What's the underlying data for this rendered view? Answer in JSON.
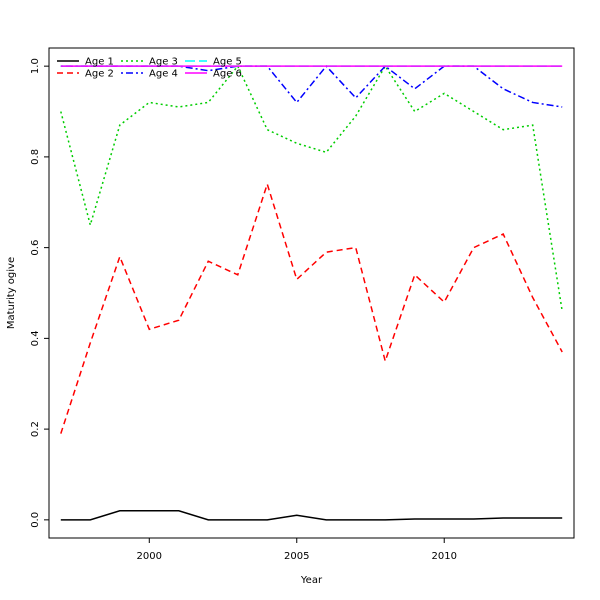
{
  "chart_data": {
    "type": "line",
    "title": "",
    "xlabel": "Year",
    "ylabel": "Maturity ogive",
    "xlim": [
      1996.6,
      2014.4
    ],
    "ylim": [
      -0.04,
      1.04
    ],
    "x_ticks": [
      2000,
      2005,
      2010
    ],
    "y_ticks": [
      0.0,
      0.2,
      0.4,
      0.6,
      0.8,
      1.0
    ],
    "x_tick_labels": [
      "2000",
      "2005",
      "2010"
    ],
    "y_tick_labels": [
      "0.0",
      "0.2",
      "0.4",
      "0.6",
      "0.8",
      "1.0"
    ],
    "grid": false,
    "legend_position": "top-left",
    "x": [
      1997,
      1998,
      1999,
      2000,
      2001,
      2002,
      2003,
      2004,
      2005,
      2006,
      2007,
      2008,
      2009,
      2010,
      2011,
      2012,
      2013,
      2014
    ],
    "series": [
      {
        "name": "Age 1",
        "color": "#000000",
        "dash": "solid",
        "values": [
          0.0,
          0.0,
          0.02,
          0.02,
          0.02,
          0.0,
          0.0,
          0.0,
          0.01,
          0.0,
          0.0,
          0.0,
          0.002,
          0.002,
          0.002,
          0.004,
          0.004,
          0.004
        ]
      },
      {
        "name": "Age 2",
        "color": "#ff0000",
        "dash": "dashed",
        "values": [
          0.19,
          0.39,
          0.58,
          0.42,
          0.44,
          0.57,
          0.54,
          0.74,
          0.53,
          0.59,
          0.6,
          0.35,
          0.54,
          0.48,
          0.6,
          0.63,
          0.49,
          0.37
        ]
      },
      {
        "name": "Age 3",
        "color": "#00cd00",
        "dash": "dotted",
        "values": [
          0.9,
          0.65,
          0.87,
          0.92,
          0.91,
          0.92,
          1.0,
          0.86,
          0.83,
          0.81,
          0.89,
          1.0,
          0.9,
          0.94,
          0.9,
          0.86,
          0.87,
          0.46
        ]
      },
      {
        "name": "Age 4",
        "color": "#0000ff",
        "dash": "dotdash",
        "values": [
          1.0,
          1.0,
          1.0,
          1.0,
          1.0,
          0.99,
          1.0,
          1.0,
          0.92,
          1.0,
          0.93,
          1.0,
          0.95,
          1.0,
          1.0,
          0.95,
          0.92,
          0.91
        ]
      },
      {
        "name": "Age 5",
        "color": "#00ffff",
        "dash": "longdash",
        "values": [
          1.0,
          1.0,
          1.0,
          1.0,
          1.0,
          1.0,
          1.0,
          1.0,
          1.0,
          1.0,
          1.0,
          1.0,
          1.0,
          1.0,
          1.0,
          1.0,
          1.0,
          1.0
        ]
      },
      {
        "name": "Age 6",
        "color": "#ff00ff",
        "dash": "solid",
        "values": [
          1.0,
          1.0,
          1.0,
          1.0,
          1.0,
          1.0,
          1.0,
          1.0,
          1.0,
          1.0,
          1.0,
          1.0,
          1.0,
          1.0,
          1.0,
          1.0,
          1.0,
          1.0
        ]
      }
    ]
  }
}
